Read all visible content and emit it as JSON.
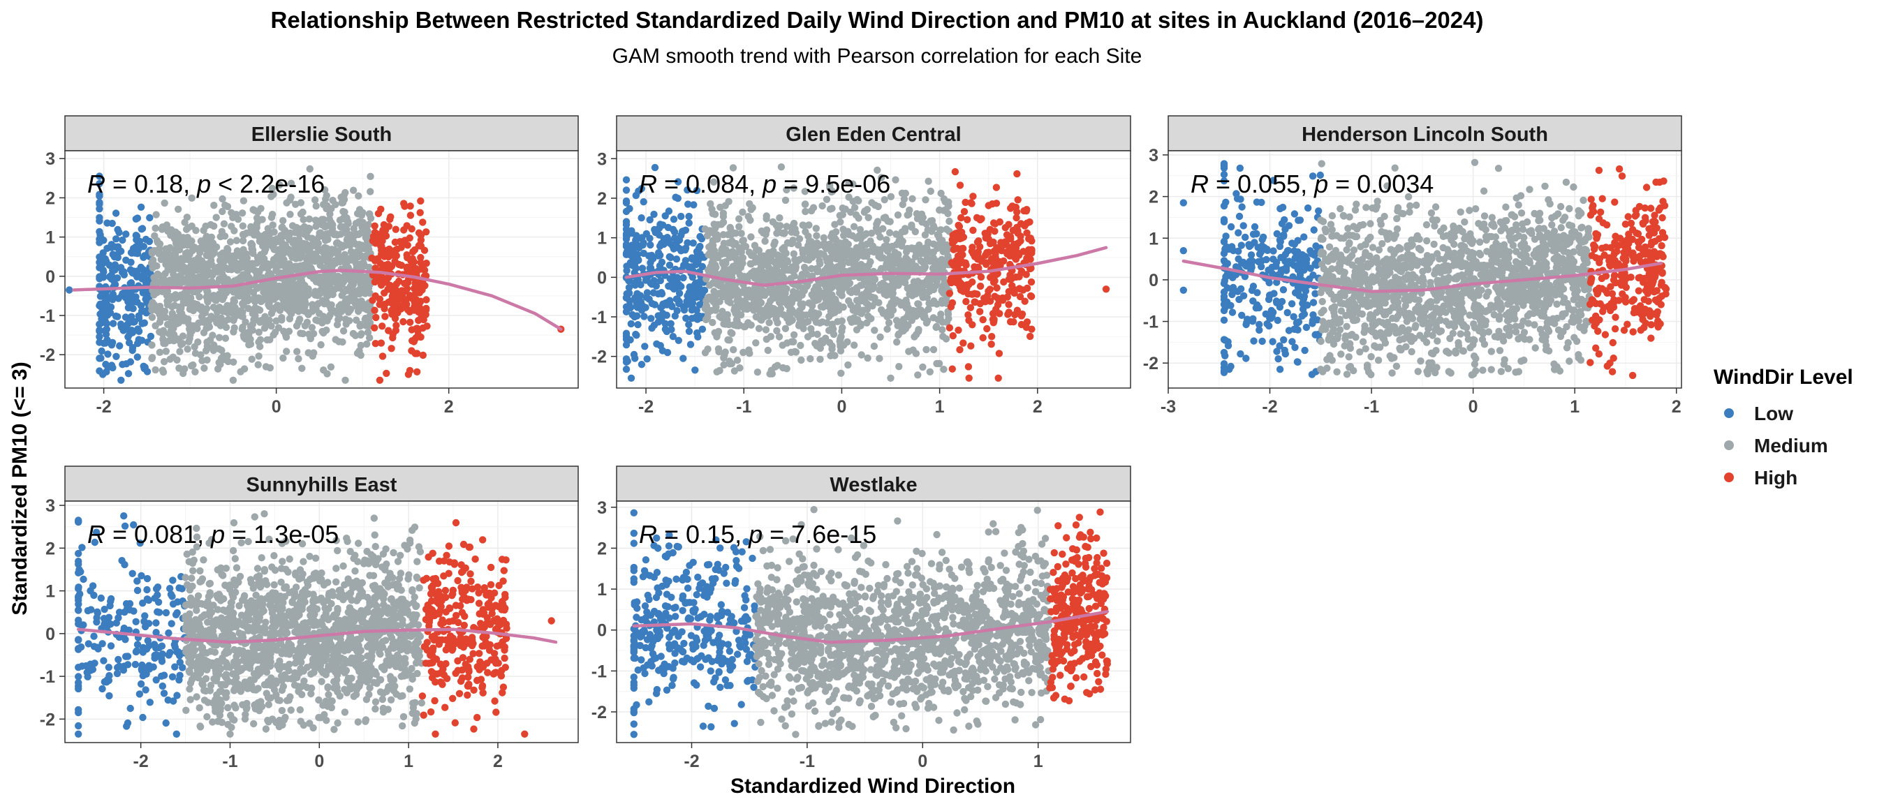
{
  "chart_data": {
    "type": "scatter",
    "title": "Relationship Between Restricted Standardized Daily Wind Direction and PM10 at sites in Auckland (2016–2024)",
    "subtitle": "GAM smooth trend with Pearson correlation for each Site",
    "xlabel": "Standardized Wind Direction",
    "ylabel": "Standardized PM10 (<= 3)",
    "legend": {
      "title": "WindDir Level",
      "placement": "right",
      "items": [
        {
          "label": "Low",
          "color": "#3b7dbf"
        },
        {
          "label": "Medium",
          "color": "#9ea8ab"
        },
        {
          "label": "High",
          "color": "#e2432f"
        }
      ]
    },
    "smooth_color": "#cc79a7",
    "grid": true,
    "panels": [
      {
        "site": "Ellerslie South",
        "xlim": [
          -2.45,
          3.5
        ],
        "ylim": [
          -2.85,
          3.2
        ],
        "xticks": [
          -2,
          0,
          2
        ],
        "yticks": [
          -2,
          -1,
          0,
          1,
          2,
          3
        ],
        "r_text": "R",
        "r_value": " = 0.18, ",
        "p_text": "p",
        "p_value": " < 2.2e-16",
        "low_x": [
          -2.05,
          -1.45
        ],
        "medium_x": [
          -1.45,
          1.1
        ],
        "high_x": [
          1.1,
          1.75
        ],
        "smooth": [
          [
            -2.35,
            -0.35
          ],
          [
            -1.5,
            -0.28
          ],
          [
            -1.0,
            -0.3
          ],
          [
            -0.5,
            -0.25
          ],
          [
            0.0,
            -0.05
          ],
          [
            0.5,
            0.12
          ],
          [
            0.75,
            0.15
          ],
          [
            1.2,
            0.1
          ],
          [
            1.6,
            -0.02
          ],
          [
            2.0,
            -0.2
          ],
          [
            2.5,
            -0.5
          ],
          [
            3.0,
            -0.95
          ],
          [
            3.3,
            -1.35
          ]
        ],
        "n_low": 240,
        "n_medium": 1500,
        "n_high": 260,
        "outliers": [
          [
            3.3,
            -1.35
          ],
          [
            -2.4,
            -0.35
          ],
          [
            -1.8,
            -2.65
          ],
          [
            0.8,
            -2.65
          ],
          [
            1.2,
            -2.65
          ],
          [
            -0.5,
            -2.65
          ]
        ]
      },
      {
        "site": "Glen Eden Central",
        "xlim": [
          -2.3,
          2.95
        ],
        "ylim": [
          -2.8,
          3.2
        ],
        "xticks": [
          -2,
          -1,
          0,
          1,
          2
        ],
        "yticks": [
          -2,
          -1,
          0,
          1,
          2,
          3
        ],
        "r_text": "R",
        "r_value": " = 0.084, ",
        "p_text": "p",
        "p_value": " = 9.5e-06",
        "low_x": [
          -2.2,
          -1.4
        ],
        "medium_x": [
          -1.4,
          1.1
        ],
        "high_x": [
          1.1,
          1.95
        ],
        "smooth": [
          [
            -2.2,
            0.0
          ],
          [
            -1.9,
            0.12
          ],
          [
            -1.6,
            0.15
          ],
          [
            -1.2,
            -0.05
          ],
          [
            -0.8,
            -0.2
          ],
          [
            -0.4,
            -0.1
          ],
          [
            0.0,
            0.05
          ],
          [
            0.5,
            0.1
          ],
          [
            1.0,
            0.08
          ],
          [
            1.5,
            0.15
          ],
          [
            2.0,
            0.35
          ],
          [
            2.4,
            0.55
          ],
          [
            2.7,
            0.75
          ]
        ],
        "n_low": 320,
        "n_medium": 1400,
        "n_high": 300,
        "outliers": [
          [
            2.7,
            -0.3
          ],
          [
            1.3,
            -2.55
          ],
          [
            -2.15,
            -2.55
          ],
          [
            0.5,
            -2.55
          ],
          [
            1.6,
            -2.55
          ]
        ]
      },
      {
        "site": "Henderson Lincoln South",
        "xlim": [
          -3.0,
          2.05
        ],
        "ylim": [
          -2.6,
          3.1
        ],
        "xticks": [
          -3,
          -2,
          -1,
          0,
          1,
          2
        ],
        "yticks": [
          -2,
          -1,
          0,
          1,
          2,
          3
        ],
        "r_text": "R",
        "r_value": " = 0.055, ",
        "p_text": "p",
        "p_value": " = 0.0034",
        "low_x": [
          -2.45,
          -1.5
        ],
        "medium_x": [
          -1.5,
          1.15
        ],
        "high_x": [
          1.15,
          1.9
        ],
        "smooth": [
          [
            -2.85,
            0.45
          ],
          [
            -2.4,
            0.25
          ],
          [
            -2.0,
            0.05
          ],
          [
            -1.5,
            -0.12
          ],
          [
            -1.0,
            -0.28
          ],
          [
            -0.5,
            -0.25
          ],
          [
            0.0,
            -0.1
          ],
          [
            0.5,
            0.0
          ],
          [
            1.0,
            0.1
          ],
          [
            1.5,
            0.25
          ],
          [
            1.85,
            0.4
          ]
        ],
        "n_low": 280,
        "n_medium": 1500,
        "n_high": 280,
        "outliers": [
          [
            -2.85,
            1.85
          ],
          [
            -2.85,
            0.7
          ],
          [
            -2.85,
            -0.25
          ],
          [
            -2.4,
            -2.15
          ],
          [
            -1.9,
            -2.15
          ],
          [
            -1.5,
            -2.15
          ],
          [
            0.8,
            -2.15
          ]
        ]
      },
      {
        "site": "Sunnyhills East",
        "xlim": [
          -2.85,
          2.9
        ],
        "ylim": [
          -2.55,
          3.1
        ],
        "xticks": [
          -2,
          -1,
          0,
          1,
          2
        ],
        "yticks": [
          -2,
          -1,
          0,
          1,
          2,
          3
        ],
        "r_text": "R",
        "r_value": " = 0.081, ",
        "p_text": "p",
        "p_value": " = 1.3e-05",
        "low_x": [
          -2.7,
          -1.5
        ],
        "medium_x": [
          -1.5,
          1.15
        ],
        "high_x": [
          1.15,
          2.1
        ],
        "smooth": [
          [
            -2.7,
            0.1
          ],
          [
            -2.2,
            0.0
          ],
          [
            -1.6,
            -0.12
          ],
          [
            -1.0,
            -0.2
          ],
          [
            -0.5,
            -0.15
          ],
          [
            0.0,
            -0.05
          ],
          [
            0.5,
            0.05
          ],
          [
            1.0,
            0.08
          ],
          [
            1.5,
            0.1
          ],
          [
            2.0,
            0.0
          ],
          [
            2.4,
            -0.1
          ],
          [
            2.65,
            -0.2
          ]
        ],
        "n_low": 200,
        "n_medium": 1500,
        "n_high": 300,
        "outliers": [
          [
            -2.7,
            -2.35
          ],
          [
            -1.6,
            -2.35
          ],
          [
            -1.0,
            -2.35
          ],
          [
            1.3,
            -2.35
          ],
          [
            2.3,
            -2.35
          ],
          [
            2.6,
            0.3
          ]
        ]
      },
      {
        "site": "Westlake",
        "xlim": [
          -2.65,
          1.8
        ],
        "ylim": [
          -2.75,
          3.15
        ],
        "xticks": [
          -2,
          -1,
          0,
          1
        ],
        "yticks": [
          -2,
          -1,
          0,
          1,
          2,
          3
        ],
        "r_text": "R",
        "r_value": " = 0.15, ",
        "p_text": "p",
        "p_value": " = 7.6e-15",
        "low_x": [
          -2.5,
          -1.45
        ],
        "medium_x": [
          -1.45,
          1.1
        ],
        "high_x": [
          1.1,
          1.6
        ],
        "smooth": [
          [
            -2.5,
            0.1
          ],
          [
            -2.0,
            0.15
          ],
          [
            -1.6,
            0.05
          ],
          [
            -1.2,
            -0.15
          ],
          [
            -0.8,
            -0.3
          ],
          [
            -0.3,
            -0.25
          ],
          [
            0.2,
            -0.15
          ],
          [
            0.7,
            0.05
          ],
          [
            1.1,
            0.2
          ],
          [
            1.4,
            0.35
          ],
          [
            1.6,
            0.45
          ]
        ],
        "n_low": 300,
        "n_medium": 1400,
        "n_high": 280,
        "outliers": [
          [
            -2.5,
            -2.55
          ],
          [
            -1.9,
            -2.35
          ],
          [
            -0.9,
            -2.35
          ],
          [
            0.4,
            -2.35
          ],
          [
            -1.1,
            -2.55
          ]
        ]
      }
    ]
  }
}
